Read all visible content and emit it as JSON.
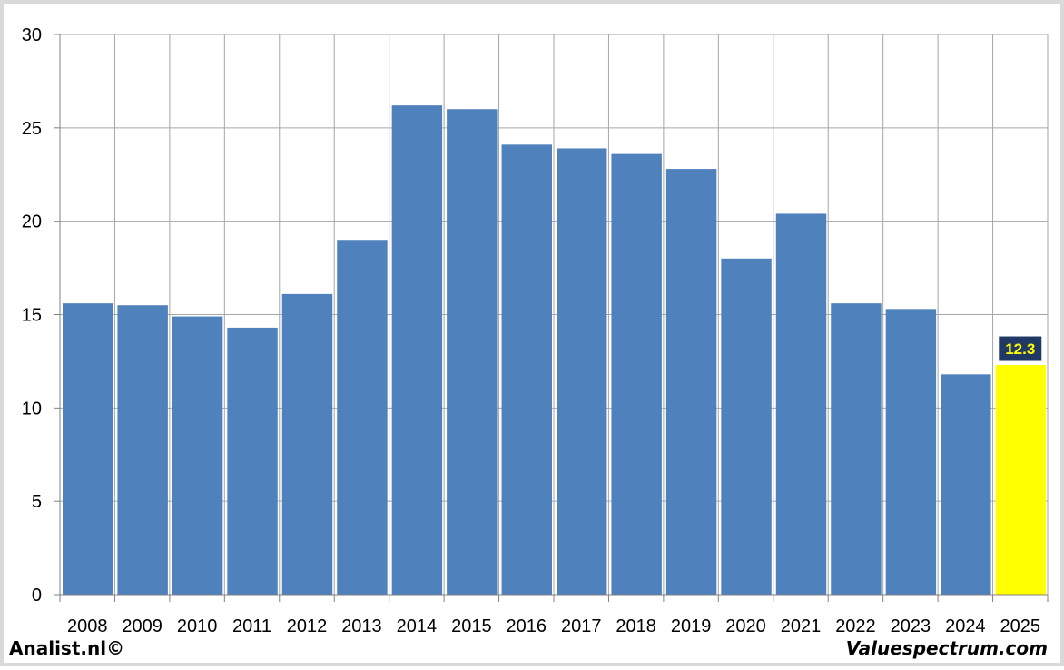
{
  "chart_data": {
    "type": "bar",
    "categories": [
      "2008",
      "2009",
      "2010",
      "2011",
      "2012",
      "2013",
      "2014",
      "2015",
      "2016",
      "2017",
      "2018",
      "2019",
      "2020",
      "2021",
      "2022",
      "2023",
      "2024",
      "2025"
    ],
    "values": [
      15.6,
      15.5,
      14.9,
      14.3,
      16.1,
      19.0,
      26.2,
      26.0,
      24.1,
      23.9,
      23.6,
      22.8,
      18.0,
      20.4,
      15.6,
      15.3,
      11.8,
      12.3
    ],
    "ylim": [
      0,
      30
    ],
    "yticks": [
      0,
      5,
      10,
      15,
      20,
      25,
      30
    ],
    "grid": true,
    "bar_color": "#4f81bd",
    "highlight": {
      "category": "2025",
      "value_label": "12.3",
      "color": "#ffff00",
      "label_bg": "#1f3864",
      "label_color": "#ffff00"
    }
  },
  "footer": {
    "left": "Analist.nl©",
    "right": "Valuespectrum.com"
  }
}
